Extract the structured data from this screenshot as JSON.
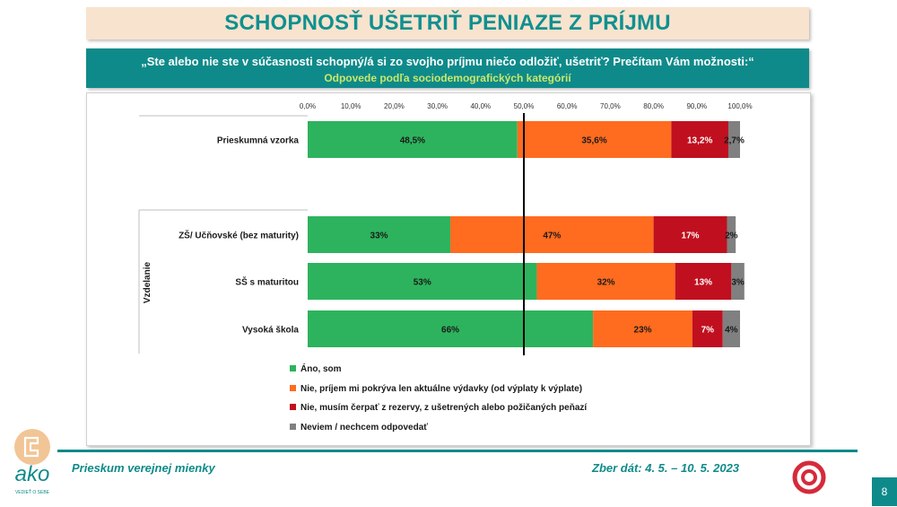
{
  "title": "SCHOPNOSŤ UŠETRIŤ PENIAZE Z PRÍJMU",
  "question": "„Ste alebo nie ste v súčasnosti schopný/á si zo svojho príjmu niečo odložiť, ušetriť? Prečítam Vám možnosti:“",
  "subtitle": "Odpovede podľa sociodemografických kategórií",
  "footer": {
    "left": "Prieskum verejnej mienky",
    "right": "Zber dát: 4. 5. – 10. 5. 2023",
    "page": "8",
    "logo_text": "ako",
    "logo_tagline": "VEDIEŤ O SEBE"
  },
  "colors": {
    "yes": "#2db35d",
    "cover_only": "#ff6b1f",
    "reserves": "#c0101f",
    "dont_know": "#808080",
    "teal": "#0f8a8a"
  },
  "chart_data": {
    "type": "bar",
    "orientation": "horizontal",
    "stacked": true,
    "xlim": [
      0,
      100
    ],
    "x_ticks": [
      "0,0%",
      "10,0%",
      "20,0%",
      "30,0%",
      "40,0%",
      "50,0%",
      "60,0%",
      "70,0%",
      "80,0%",
      "90,0%",
      "100,0%"
    ],
    "reference_line": 50,
    "group_label": "Vzdelanie",
    "categories": [
      "Prieskumná vzorka",
      "ZŠ/ Učňovské (bez maturity)",
      "SŠ s maturitou",
      "Vysoká škola"
    ],
    "series": [
      {
        "name": "Áno, som",
        "values": [
          48.5,
          33,
          53,
          66
        ],
        "labels": [
          "48,5%",
          "33%",
          "53%",
          "66%"
        ]
      },
      {
        "name": "Nie, príjem mi pokrýva len aktuálne výdavky (od výplaty k výplate)",
        "values": [
          35.6,
          47,
          32,
          23
        ],
        "labels": [
          "35,6%",
          "47%",
          "32%",
          "23%"
        ]
      },
      {
        "name": "Nie, musím čerpať z rezervy, z ušetrených alebo požičaných peňazí",
        "values": [
          13.2,
          17,
          13,
          7
        ],
        "labels": [
          "13,2%",
          "17%",
          "13%",
          "7%"
        ]
      },
      {
        "name": "Neviem / nechcem odpovedať",
        "values": [
          2.7,
          2,
          3,
          4
        ],
        "labels": [
          "2,7%",
          "2%",
          "3%",
          "4%"
        ]
      }
    ],
    "legend_position": "bottom"
  }
}
